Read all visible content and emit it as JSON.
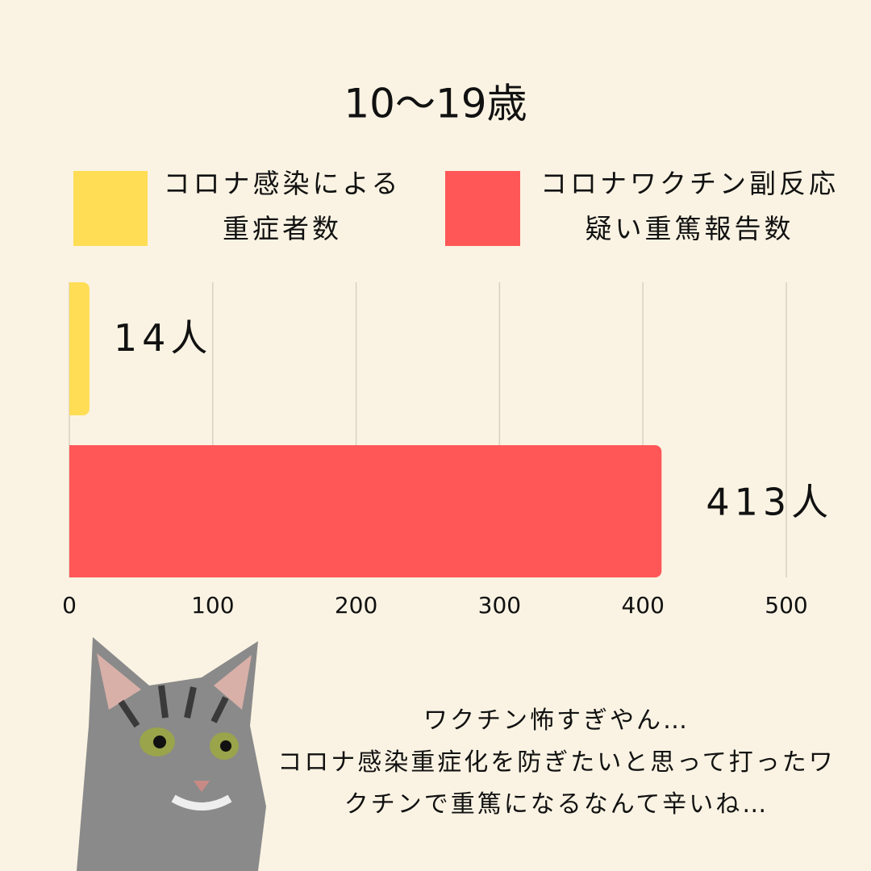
{
  "chart_data": {
    "type": "bar",
    "orientation": "horizontal",
    "title": "10〜19歳",
    "series": [
      {
        "name": "コロナ感染による\n重症者数",
        "color": "#ffdd55",
        "values": [
          14
        ],
        "value_labels": [
          "14人"
        ]
      },
      {
        "name": "コロナワクチン副反応\n疑い重篤報告数",
        "color": "#ff5757",
        "values": [
          413
        ],
        "value_labels": [
          "413人"
        ]
      }
    ],
    "xlim": [
      0,
      500
    ],
    "xticks": [
      0,
      100,
      200,
      300,
      400,
      500
    ],
    "grid": true,
    "annotation": "ワクチン怖すぎやん…\nコロナ感染重症化を防ぎたいと思って打ったワ\nクチンで重篤になるなんて辛いね…"
  }
}
